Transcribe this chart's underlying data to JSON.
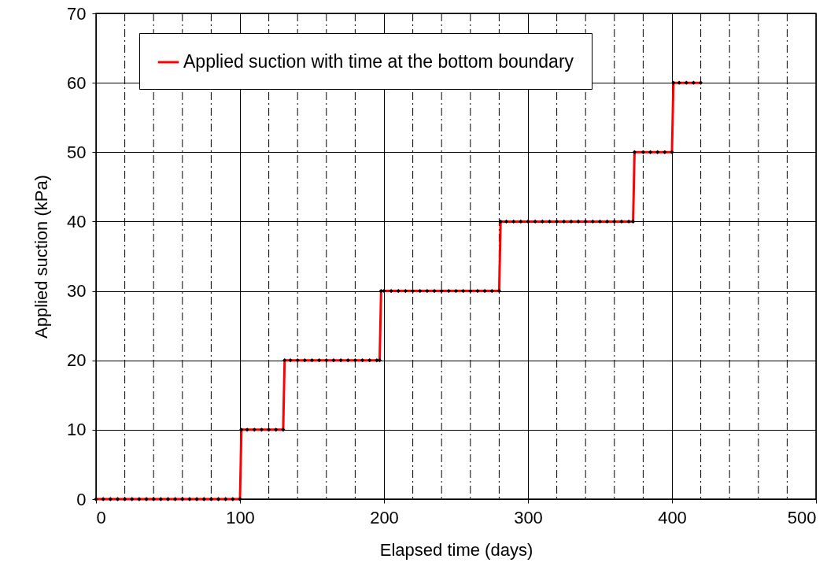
{
  "chart_data": {
    "type": "line",
    "xlabel": "Elapsed time (days)",
    "ylabel": "Applied suction (kPa)",
    "xlim": [
      0,
      500
    ],
    "xticks": [
      0,
      {
        "value": 20,
        "label": null
      },
      {
        "value": 40,
        "label": null
      },
      {
        "value": 60,
        "label": null
      },
      {
        "value": 80,
        "label": null
      },
      100,
      {
        "value": 120,
        "label": null
      },
      {
        "value": 140,
        "label": null
      },
      {
        "value": 160,
        "label": null
      },
      {
        "value": 180,
        "label": null
      },
      200,
      {
        "value": 220,
        "label": null
      },
      {
        "value": 240,
        "label": null
      },
      {
        "value": 260,
        "label": null
      },
      {
        "value": 280,
        "label": null
      },
      300,
      {
        "value": 320,
        "label": null
      },
      {
        "value": 340,
        "label": null
      },
      {
        "value": 360,
        "label": null
      },
      {
        "value": 380,
        "label": null
      },
      400,
      {
        "value": 420,
        "label": null
      },
      {
        "value": 440,
        "label": null
      },
      {
        "value": 460,
        "label": null
      },
      {
        "value": 480,
        "label": null
      },
      500
    ],
    "ylim": [
      0,
      70
    ],
    "yticks": [
      0,
      10,
      20,
      30,
      40,
      50,
      60,
      70
    ],
    "grid": true,
    "legend": "top left",
    "marker": "diamond",
    "line_style": "solid",
    "series": [
      {
        "name": "Applied suction with time at the bottom boundary",
        "color": "#ff0000",
        "x": [
          0,
          5,
          10,
          15,
          20,
          25,
          30,
          35,
          40,
          45,
          50,
          55,
          60,
          65,
          70,
          75,
          80,
          85,
          90,
          95,
          100,
          101,
          105,
          110,
          115,
          120,
          125,
          130,
          131,
          135,
          140,
          145,
          150,
          155,
          160,
          165,
          170,
          175,
          180,
          185,
          190,
          195,
          197,
          198,
          200,
          205,
          210,
          215,
          220,
          225,
          230,
          235,
          240,
          245,
          250,
          255,
          260,
          265,
          270,
          275,
          280,
          281,
          285,
          290,
          295,
          300,
          305,
          310,
          315,
          320,
          325,
          330,
          335,
          340,
          345,
          350,
          355,
          360,
          365,
          370,
          373,
          374,
          380,
          385,
          390,
          395,
          400,
          401,
          405,
          410,
          415,
          420
        ],
        "values": [
          0,
          0,
          0,
          0,
          0,
          0,
          0,
          0,
          0,
          0,
          0,
          0,
          0,
          0,
          0,
          0,
          0,
          0,
          0,
          0,
          0,
          10,
          10,
          10,
          10,
          10,
          10,
          10,
          20,
          20,
          20,
          20,
          20,
          20,
          20,
          20,
          20,
          20,
          20,
          20,
          20,
          20,
          20,
          30,
          30,
          30,
          30,
          30,
          30,
          30,
          30,
          30,
          30,
          30,
          30,
          30,
          30,
          30,
          30,
          30,
          30,
          40,
          40,
          40,
          40,
          40,
          40,
          40,
          40,
          40,
          40,
          40,
          40,
          40,
          40,
          40,
          40,
          40,
          40,
          40,
          40,
          50,
          50,
          50,
          50,
          50,
          50,
          60,
          60,
          60,
          60,
          60
        ]
      }
    ]
  }
}
